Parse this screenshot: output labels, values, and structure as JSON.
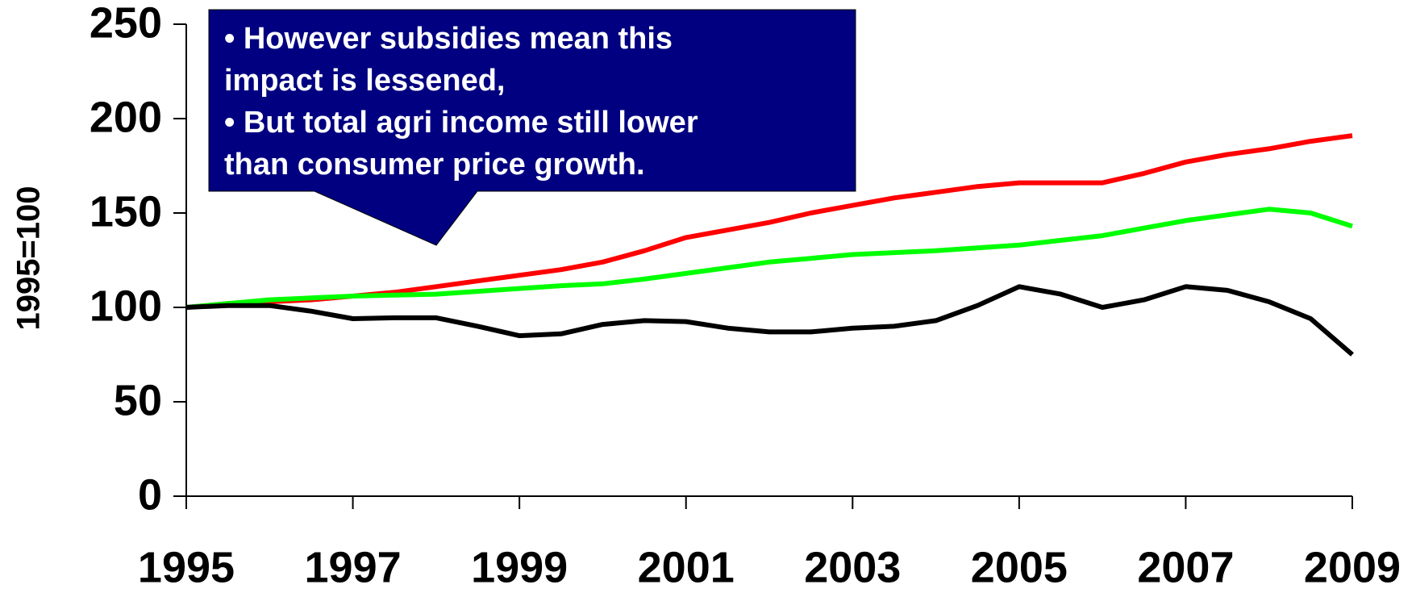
{
  "chart_data": {
    "type": "line",
    "ylabel": "1995=100",
    "annotation": [
      "• However subsidies mean this",
      "impact is lessened,",
      "• But total agri income still lower",
      "than consumer price growth."
    ],
    "x": [
      1995,
      1995.5,
      1996,
      1996.5,
      1997,
      1997.5,
      1998,
      1998.5,
      1999,
      1999.5,
      2000,
      2000.5,
      2001,
      2001.5,
      2002,
      2002.5,
      2003,
      2003.5,
      2004,
      2004.5,
      2005,
      2005.5,
      2006,
      2006.5,
      2007,
      2007.5,
      2008,
      2008.5,
      2009
    ],
    "series": [
      {
        "color": "#ff0000",
        "values": [
          100,
          102,
          103,
          104,
          106,
          108,
          111,
          114,
          117,
          120,
          124,
          130,
          137,
          141,
          145,
          150,
          154,
          158,
          161,
          164,
          166,
          166,
          166,
          171,
          177,
          181,
          184,
          188,
          191
        ]
      },
      {
        "color": "#00ff00",
        "values": [
          100,
          102,
          104,
          105,
          106,
          106.5,
          107,
          108.5,
          110,
          111.5,
          112.5,
          115,
          118,
          121,
          124,
          126,
          128,
          129,
          130,
          131.5,
          133,
          135.5,
          138,
          142,
          146,
          149,
          152,
          150,
          143
        ]
      },
      {
        "color": "#000000",
        "values": [
          100,
          101,
          101,
          98,
          94,
          94.5,
          94.5,
          90,
          85,
          86,
          91,
          93,
          92.5,
          89,
          87,
          87,
          89,
          90,
          93,
          101,
          111,
          107,
          100,
          104,
          111,
          109,
          103,
          94,
          75
        ]
      }
    ],
    "xlim": [
      1995,
      2009
    ],
    "xticks": [
      1995,
      1997,
      1999,
      2001,
      2003,
      2005,
      2007,
      2009
    ],
    "ylim": [
      0,
      250
    ],
    "yticks": [
      0,
      50,
      100,
      150,
      200,
      250
    ]
  }
}
